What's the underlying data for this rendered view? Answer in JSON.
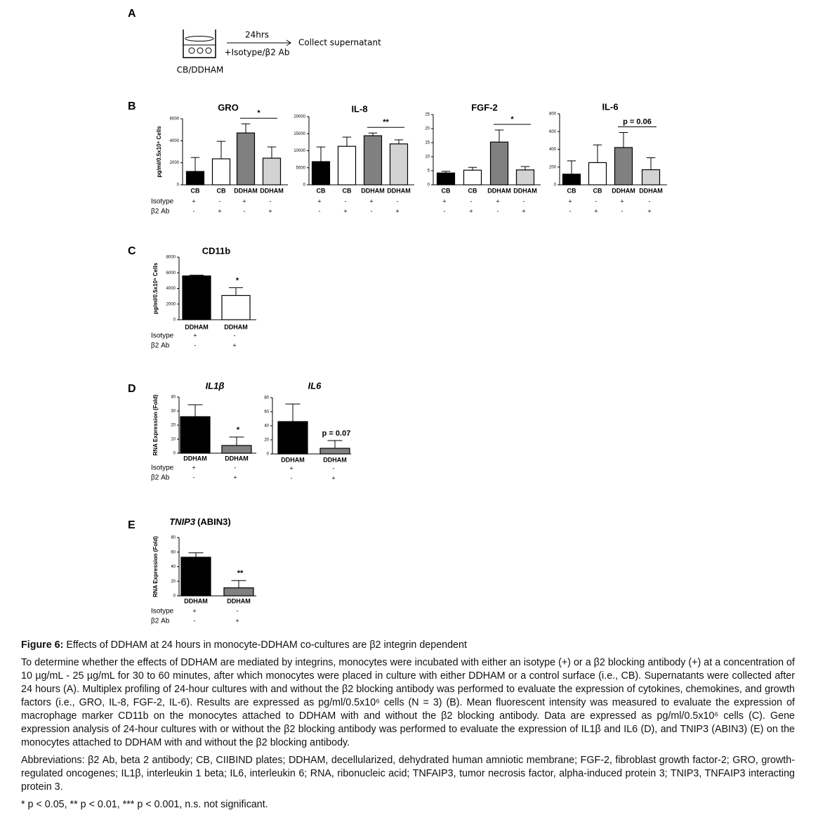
{
  "panels": [
    "A",
    "B",
    "C",
    "D",
    "E"
  ],
  "schematic": {
    "time": "24hrs",
    "treatment": "+Isotype/β2 Ab",
    "result": "Collect supernatant",
    "label": "CB/DDHAM"
  },
  "chart_data": [
    {
      "type": "bar",
      "title": "GRO",
      "ylabel": "pg/ml/0.5x10⁶ Cells",
      "categories": [
        "CB",
        "CB",
        "DDHAM",
        "DDHAM"
      ],
      "values": [
        1210,
        2360,
        4710,
        2420
      ],
      "errors": [
        1270,
        1590,
        830,
        1020
      ],
      "colors": [
        "#000000",
        "#ffffff",
        "#808080",
        "#d3d3d3"
      ],
      "ylim": [
        0,
        6000
      ],
      "yticks": [
        0,
        2000,
        4000,
        6000
      ],
      "annotation": "*",
      "conditions": [
        {
          "label": "Isotype",
          "values": [
            "+",
            "-",
            "+",
            "-"
          ]
        },
        {
          "label": "β2 Ab",
          "values": [
            "-",
            "+",
            "-",
            "+"
          ]
        }
      ]
    },
    {
      "type": "bar",
      "title": "IL-8",
      "categories": [
        "CB",
        "CB",
        "DDHAM",
        "DDHAM"
      ],
      "values": [
        6800,
        11300,
        14400,
        12000
      ],
      "errors": [
        4300,
        2700,
        800,
        1200
      ],
      "colors": [
        "#000000",
        "#ffffff",
        "#808080",
        "#d3d3d3"
      ],
      "ylim": [
        0,
        20000
      ],
      "yticks": [
        0,
        5000,
        10000,
        15000,
        20000
      ],
      "annotation": "**",
      "conditions": [
        {
          "values": [
            "+",
            "-",
            "+",
            "-"
          ]
        },
        {
          "values": [
            "-",
            "+",
            "-",
            "+"
          ]
        }
      ]
    },
    {
      "type": "bar",
      "title": "FGF-2",
      "categories": [
        "CB",
        "CB",
        "DDHAM",
        "DDHAM"
      ],
      "values": [
        4.2,
        5.2,
        15.2,
        5.3
      ],
      "errors": [
        0.6,
        1,
        4.3,
        1.2
      ],
      "colors": [
        "#000000",
        "#ffffff",
        "#808080",
        "#d3d3d3"
      ],
      "ylim": [
        0,
        25
      ],
      "yticks": [
        0,
        5,
        10,
        15,
        20,
        25
      ],
      "annotation": "*",
      "conditions": [
        {
          "values": [
            "+",
            "-",
            "+",
            "-"
          ]
        },
        {
          "values": [
            "-",
            "+",
            "-",
            "+"
          ]
        }
      ]
    },
    {
      "type": "bar",
      "title": "IL-6",
      "categories": [
        "CB",
        "CB",
        "DDHAM",
        "DDHAM"
      ],
      "values": [
        120,
        250,
        420,
        170
      ],
      "errors": [
        150,
        200,
        170,
        135
      ],
      "colors": [
        "#000000",
        "#ffffff",
        "#808080",
        "#d3d3d3"
      ],
      "ylim": [
        0,
        800
      ],
      "yticks": [
        0,
        200,
        400,
        600,
        800
      ],
      "annotation": "p = 0.06",
      "conditions": [
        {
          "values": [
            "+",
            "-",
            "+",
            "-"
          ]
        },
        {
          "values": [
            "-",
            "+",
            "-",
            "+"
          ]
        }
      ]
    },
    {
      "type": "bar",
      "title": "CD11b",
      "ylabel": "pg/ml/0.5x10⁶ Cells",
      "categories": [
        "DDHAM",
        "DDHAM"
      ],
      "values": [
        5600,
        3100
      ],
      "errors": [
        100,
        1000
      ],
      "colors": [
        "#000000",
        "#ffffff"
      ],
      "ylim": [
        0,
        8000
      ],
      "yticks": [
        0,
        2000,
        4000,
        6000,
        8000
      ],
      "annotation": "*",
      "conditions": [
        {
          "label": "Isotype",
          "values": [
            "+",
            "-"
          ]
        },
        {
          "label": "β2 Ab",
          "values": [
            "-",
            "+"
          ]
        }
      ]
    },
    {
      "type": "bar",
      "title": "IL1β",
      "ylabel": "RNA Expression (Fold)",
      "categories": [
        "DDHAM",
        "DDHAM"
      ],
      "values": [
        26,
        5.5
      ],
      "errors": [
        8.5,
        6
      ],
      "colors": [
        "#000000",
        "#808080"
      ],
      "ylim": [
        0,
        40
      ],
      "yticks": [
        0,
        10,
        20,
        30,
        40
      ],
      "annotation": "*",
      "conditions": [
        {
          "label": "Isotype",
          "values": [
            "+",
            "-"
          ]
        },
        {
          "label": "β2 Ab",
          "values": [
            "-",
            "+"
          ]
        }
      ]
    },
    {
      "type": "bar",
      "title": "IL6",
      "categories": [
        "DDHAM",
        "DDHAM"
      ],
      "values": [
        46,
        8
      ],
      "errors": [
        25,
        11
      ],
      "colors": [
        "#000000",
        "#808080"
      ],
      "ylim": [
        0,
        80
      ],
      "yticks": [
        0,
        20,
        40,
        60,
        80
      ],
      "annotation": "p = 0.07",
      "conditions": [
        {
          "values": [
            "+",
            "-"
          ]
        },
        {
          "values": [
            "-",
            "+"
          ]
        }
      ]
    },
    {
      "type": "bar",
      "title": "TNIP3",
      "subtitle": "(ABIN3)",
      "ylabel": "RNA Expression (Fold)",
      "categories": [
        "DDHAM",
        "DDHAM"
      ],
      "values": [
        53,
        11
      ],
      "errors": [
        6,
        10
      ],
      "colors": [
        "#000000",
        "#808080"
      ],
      "ylim": [
        0,
        80
      ],
      "yticks": [
        0,
        20,
        40,
        60,
        80
      ],
      "annotation": "**",
      "conditions": [
        {
          "label": "Isotype",
          "values": [
            "+",
            "-"
          ]
        },
        {
          "label": "β2 Ab",
          "values": [
            "-",
            "+"
          ]
        }
      ]
    }
  ],
  "caption": {
    "label": "Figure 6:",
    "title": "Effects of DDHAM at 24 hours in monocyte-DDHAM co-cultures are β2 integrin dependent",
    "paragraphs": [
      "To determine whether the effects of DDHAM are mediated by integrins, monocytes were incubated with either an isotype (+) or a β2 blocking antibody (+) at a concentration of 10 µg/mL - 25 µg/mL for 30 to 60 minutes, after which monocytes were placed in culture with either DDHAM or a control surface (i.e., CB). Supernatants were collected after 24 hours (A). Multiplex profiling of 24-hour cultures with and without the β2 blocking antibody was performed to evaluate the expression of cytokines, chemokines, and growth factors (i.e., GRO, IL-8, FGF-2, IL-6). Results are expressed as pg/ml/0.5x10⁶ cells (N = 3) (B). Mean fluorescent intensity was measured to evaluate the expression of macrophage marker CD11b on the monocytes attached to DDHAM with and without the β2 blocking antibody. Data are expressed as pg/ml/0.5x10⁶ cells (C). Gene expression analysis of 24-hour cultures with or without the β2 blocking antibody was performed to evaluate the expression of IL1β and IL6 (D), and TNIP3 (ABIN3) (E) on the monocytes attached to DDHAM with and without the β2 blocking antibody.",
      "Abbreviations: β2 Ab, beta 2 antibody; CB, CIIBIND plates; DDHAM, decellularized, dehydrated human amniotic membrane; FGF-2, fibroblast growth factor-2; GRO, growth-regulated oncogenes; IL1β, interleukin 1 beta; IL6, interleukin 6; RNA, ribonucleic acid; TNFAIP3, tumor necrosis factor, alpha-induced protein 3; TNIP3, TNFAIP3 interacting protein 3.",
      "* p < 0.05, ** p < 0.01, *** p < 0.001, n.s. not significant."
    ]
  }
}
